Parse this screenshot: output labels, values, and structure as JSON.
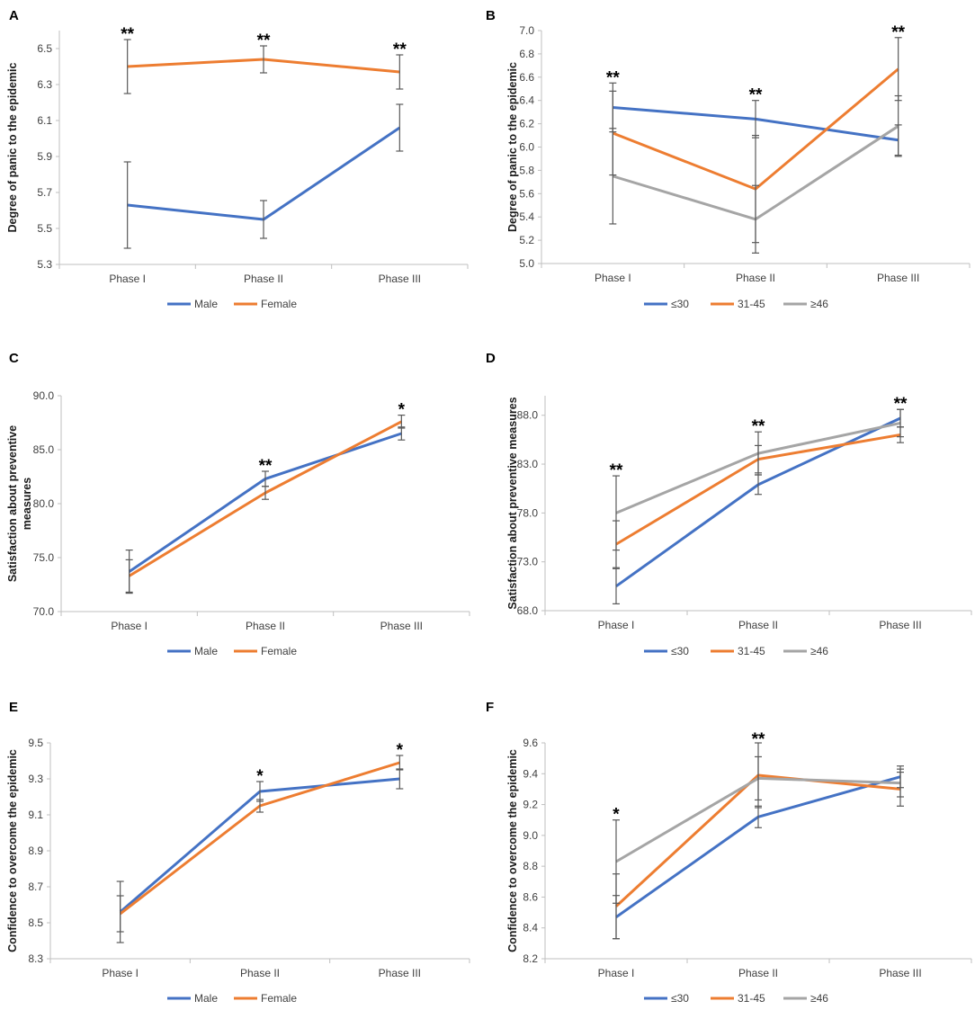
{
  "colors": {
    "male": "#4472C4",
    "female": "#ED7D31",
    "le30": "#4472C4",
    "g31_45": "#ED7D31",
    "ge46": "#A5A5A5",
    "axis": "#bfbfbf",
    "errorbar": "#595959"
  },
  "chart_data": [
    {
      "panel": "A",
      "type": "line",
      "ylabel": "Degree of panic to the epidemic",
      "categories": [
        "Phase I",
        "Phase II",
        "Phase III"
      ],
      "ylim": [
        5.3,
        6.6
      ],
      "yticks": [
        "5.3",
        "5.5",
        "5.7",
        "5.9",
        "6.1",
        "6.3",
        "6.5"
      ],
      "series": [
        {
          "name": "Male",
          "color": "#4472C4",
          "values": [
            5.63,
            5.55,
            6.06
          ],
          "errors": [
            0.24,
            0.105,
            0.13
          ]
        },
        {
          "name": "Female",
          "color": "#ED7D31",
          "values": [
            6.4,
            6.44,
            6.37
          ],
          "errors": [
            0.15,
            0.075,
            0.095
          ]
        }
      ],
      "significance": [
        "**",
        "**",
        "**"
      ],
      "legend_position": "bottom"
    },
    {
      "panel": "B",
      "type": "line",
      "ylabel": "Degree of panic to the epidemic",
      "categories": [
        "Phase I",
        "Phase II",
        "Phase III"
      ],
      "ylim": [
        5.0,
        7.0
      ],
      "yticks": [
        "5.0",
        "5.2",
        "5.4",
        "5.6",
        "5.8",
        "6.0",
        "6.2",
        "6.4",
        "6.6",
        "6.8",
        "7.0"
      ],
      "series": [
        {
          "name": "≤30",
          "color": "#4472C4",
          "values": [
            6.34,
            6.24,
            6.06
          ],
          "errors": [
            0.21,
            0.16,
            0.13
          ]
        },
        {
          "name": "31-45",
          "color": "#ED7D31",
          "values": [
            6.12,
            5.64,
            6.67
          ],
          "errors": [
            0.36,
            0.46,
            0.27
          ]
        },
        {
          "name": "≥46",
          "color": "#A5A5A5",
          "values": [
            5.75,
            5.38,
            6.18
          ],
          "errors": [
            0.41,
            0.29,
            0.26
          ]
        }
      ],
      "significance": [
        "**",
        "**",
        "**"
      ],
      "legend_position": "bottom"
    },
    {
      "panel": "C",
      "type": "line",
      "ylabel": "Satisfaction about preventive measures",
      "categories": [
        "Phase I",
        "Phase II",
        "Phase III"
      ],
      "ylim": [
        70.0,
        90.0
      ],
      "yticks": [
        "70.0",
        "75.0",
        "80.0",
        "85.0",
        "90.0"
      ],
      "series": [
        {
          "name": "Male",
          "color": "#4472C4",
          "values": [
            73.7,
            82.3,
            86.5
          ],
          "errors": [
            2.0,
            0.7,
            0.6
          ]
        },
        {
          "name": "Female",
          "color": "#ED7D31",
          "values": [
            73.3,
            81.0,
            87.6
          ],
          "errors": [
            1.5,
            0.6,
            0.6
          ]
        }
      ],
      "significance": [
        "",
        "**",
        "*"
      ],
      "legend_position": "bottom"
    },
    {
      "panel": "D",
      "type": "line",
      "ylabel": "Satisfaction about preventive measures",
      "categories": [
        "Phase I",
        "Phase II",
        "Phase III"
      ],
      "ylim": [
        68.0,
        90.0
      ],
      "yticks": [
        "68.0",
        "73.0",
        "78.0",
        "83.0",
        "88.0"
      ],
      "series": [
        {
          "name": "≤30",
          "color": "#4472C4",
          "values": [
            70.5,
            80.9,
            87.7
          ],
          "errors": [
            1.8,
            1.0,
            0.9
          ]
        },
        {
          "name": "31-45",
          "color": "#ED7D31",
          "values": [
            74.8,
            83.5,
            86.0
          ],
          "errors": [
            2.4,
            1.4,
            0.8
          ]
        },
        {
          "name": "≥46",
          "color": "#A5A5A5",
          "values": [
            78.0,
            84.1,
            87.2
          ],
          "errors": [
            3.8,
            2.2,
            1.4
          ]
        }
      ],
      "significance": [
        "**",
        "**",
        "**"
      ],
      "legend_position": "bottom"
    },
    {
      "panel": "E",
      "type": "line",
      "ylabel": "Confidence to overcome the epidemic",
      "categories": [
        "Phase I",
        "Phase II",
        "Phase III"
      ],
      "ylim": [
        8.3,
        9.5
      ],
      "yticks": [
        "8.3",
        "8.5",
        "8.7",
        "8.9",
        "9.1",
        "9.3",
        "9.5"
      ],
      "series": [
        {
          "name": "Male",
          "color": "#4472C4",
          "values": [
            8.56,
            9.23,
            9.3
          ],
          "errors": [
            0.17,
            0.055,
            0.055
          ]
        },
        {
          "name": "Female",
          "color": "#ED7D31",
          "values": [
            8.55,
            9.15,
            9.39
          ],
          "errors": [
            0.1,
            0.035,
            0.04
          ]
        }
      ],
      "significance": [
        "",
        "*",
        "*"
      ],
      "legend_position": "bottom"
    },
    {
      "panel": "F",
      "type": "line",
      "ylabel": "Confidence to overcome the epidemic",
      "categories": [
        "Phase I",
        "Phase II",
        "Phase III"
      ],
      "ylim": [
        8.2,
        9.6
      ],
      "yticks": [
        "8.2",
        "8.4",
        "8.6",
        "8.8",
        "9.0",
        "9.2",
        "9.4",
        "9.6"
      ],
      "series": [
        {
          "name": "≤30",
          "color": "#4472C4",
          "values": [
            8.47,
            9.12,
            9.38
          ],
          "errors": [
            0.14,
            0.07,
            0.07
          ]
        },
        {
          "name": "31-45",
          "color": "#ED7D31",
          "values": [
            8.54,
            9.39,
            9.3
          ],
          "errors": [
            0.21,
            0.21,
            0.11
          ]
        },
        {
          "name": "≥46",
          "color": "#A5A5A5",
          "values": [
            8.83,
            9.37,
            9.34
          ],
          "errors": [
            0.27,
            0.14,
            0.09
          ]
        }
      ],
      "significance": [
        "*",
        "**",
        ""
      ],
      "legend_position": "bottom"
    }
  ]
}
